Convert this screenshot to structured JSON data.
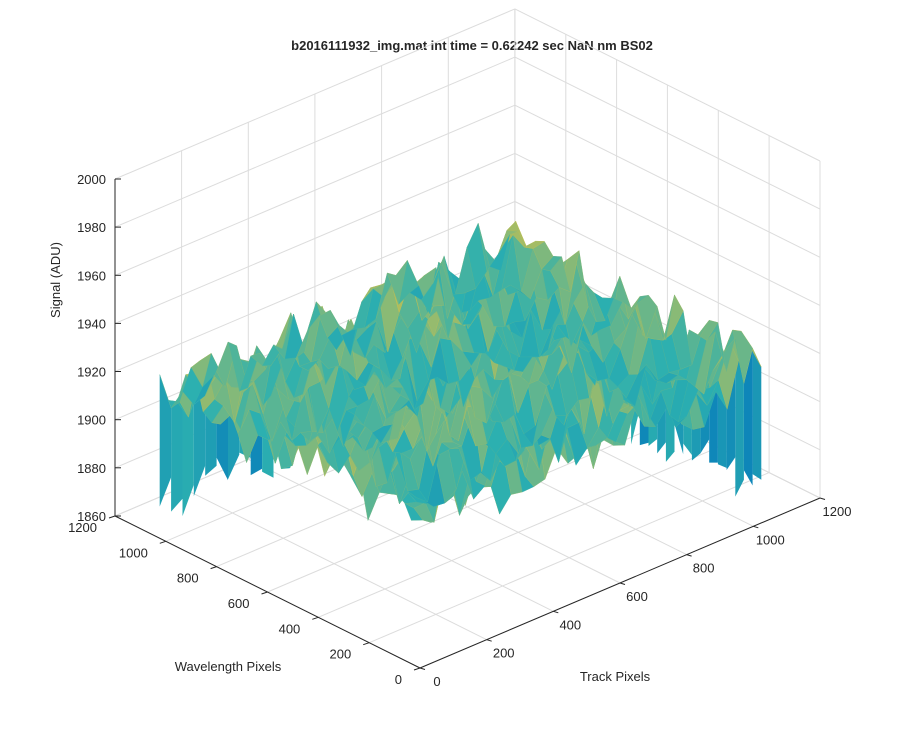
{
  "chart_data": {
    "type": "surface",
    "title": "b2016111932_img.mat int time = 0.62242 sec  NaN nm BS02",
    "xlabel": "Track Pixels",
    "ylabel": "Wavelength Pixels",
    "zlabel": "Signal (ADU)",
    "xlim": [
      0,
      1200
    ],
    "ylim": [
      0,
      1200
    ],
    "zlim": [
      1860,
      2000
    ],
    "x_ticks": [
      "0",
      "200",
      "400",
      "600",
      "800",
      "1000",
      "1200"
    ],
    "y_ticks": [
      "0",
      "200",
      "400",
      "600",
      "800",
      "1000",
      "1200"
    ],
    "z_ticks": [
      "1860",
      "1880",
      "1900",
      "1920",
      "1940",
      "1960",
      "1980",
      "2000"
    ],
    "grid": true,
    "colormap": "parula",
    "surface_extent": {
      "x": [
        0,
        1024
      ],
      "y": [
        0,
        1024
      ]
    },
    "signal_mean": 1922,
    "signal_range": [
      1865,
      1980
    ],
    "colors": {
      "low": "#0072bd",
      "mid": "#2cb0b0",
      "high": "#e6c33c"
    }
  }
}
